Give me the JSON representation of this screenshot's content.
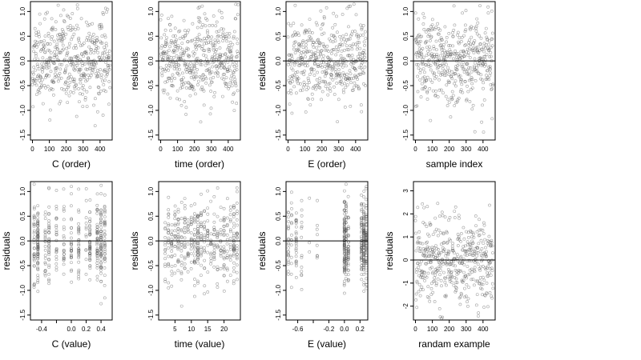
{
  "chart_data": [
    {
      "type": "scatter",
      "xlabel": "C (order)",
      "ylabel": "residuals",
      "xlim": [
        -12,
        472
      ],
      "ylim": [
        -1.6,
        1.2
      ],
      "xticks": [
        0,
        100,
        200,
        300,
        400
      ],
      "xtick_labels": [
        "0",
        "100",
        "200",
        "300",
        "400"
      ],
      "yticks": [
        -1.5,
        -1.0,
        -0.5,
        0.0,
        0.5,
        1.0
      ],
      "ytick_labels": [
        "-1.5",
        "-1.0",
        "-0.5",
        "0.0",
        "0.5",
        "1.0"
      ],
      "hline": 0,
      "x_kind": "index",
      "n": 460,
      "seed": 11
    },
    {
      "type": "scatter",
      "xlabel": "time (order)",
      "ylabel": "residuals",
      "xlim": [
        -12,
        472
      ],
      "ylim": [
        -1.6,
        1.2
      ],
      "xticks": [
        0,
        100,
        200,
        300,
        400
      ],
      "xtick_labels": [
        "0",
        "100",
        "200",
        "300",
        "400"
      ],
      "yticks": [
        -1.5,
        -1.0,
        -0.5,
        0.0,
        0.5,
        1.0
      ],
      "ytick_labels": [
        "-1.5",
        "-1.0",
        "-0.5",
        "0.0",
        "0.5",
        "1.0"
      ],
      "hline": 0,
      "x_kind": "index",
      "n": 460,
      "seed": 23
    },
    {
      "type": "scatter",
      "xlabel": "E (order)",
      "ylabel": "residuals",
      "xlim": [
        -12,
        472
      ],
      "ylim": [
        -1.6,
        1.2
      ],
      "xticks": [
        0,
        100,
        200,
        300,
        400
      ],
      "xtick_labels": [
        "0",
        "100",
        "200",
        "300",
        "400"
      ],
      "yticks": [
        -1.5,
        -1.0,
        -0.5,
        0.0,
        0.5,
        1.0
      ],
      "ytick_labels": [
        "-1.5",
        "-1.0",
        "-0.5",
        "0.0",
        "0.5",
        "1.0"
      ],
      "hline": 0,
      "x_kind": "index",
      "n": 460,
      "seed": 37
    },
    {
      "type": "scatter",
      "xlabel": "sample index",
      "ylabel": "residuals",
      "xlim": [
        -12,
        472
      ],
      "ylim": [
        -1.6,
        1.2
      ],
      "xticks": [
        0,
        100,
        200,
        300,
        400
      ],
      "xtick_labels": [
        "0",
        "100",
        "200",
        "300",
        "400"
      ],
      "yticks": [
        -1.5,
        -1.0,
        -0.5,
        0.0,
        0.5,
        1.0
      ],
      "ytick_labels": [
        "-1.5",
        "-1.0",
        "-0.5",
        "0.0",
        "0.5",
        "1.0"
      ],
      "hline": 0,
      "x_kind": "index",
      "n": 460,
      "seed": 53
    },
    {
      "type": "scatter",
      "xlabel": "C (value)",
      "ylabel": "residuals",
      "xlim": [
        -0.55,
        0.55
      ],
      "ylim": [
        -1.6,
        1.2
      ],
      "xticks": [
        -0.4,
        -0.2,
        0.0,
        0.2,
        0.4
      ],
      "xtick_labels": [
        "-0.4",
        "",
        "0.0",
        "0.2",
        "0.4"
      ],
      "yticks": [
        -1.5,
        -1.0,
        -0.5,
        0.0,
        0.5,
        1.0
      ],
      "ytick_labels": [
        "-1.5",
        "-1.0",
        "-0.5",
        "0.0",
        "0.5",
        "1.0"
      ],
      "hline": 0,
      "x_kind": "levels",
      "x_levels": [
        -0.5,
        -0.45,
        -0.35,
        -0.3,
        -0.2,
        -0.1,
        0.0,
        0.1,
        0.2,
        0.25,
        0.35,
        0.4,
        0.45
      ],
      "x_weights": [
        6,
        10,
        3,
        4,
        3,
        3,
        3,
        4,
        3,
        5,
        6,
        9,
        6
      ],
      "n": 460,
      "seed": 71
    },
    {
      "type": "scatter",
      "xlabel": "time (value)",
      "ylabel": "residuals",
      "xlim": [
        0,
        25
      ],
      "ylim": [
        -1.6,
        1.2
      ],
      "xticks": [
        5,
        10,
        15,
        20
      ],
      "xtick_labels": [
        "5",
        "10",
        "15",
        "20"
      ],
      "yticks": [
        -1.5,
        -1.0,
        -0.5,
        0.0,
        0.5,
        1.0
      ],
      "ytick_labels": [
        "-1.5",
        "-1.0",
        "-0.5",
        "0.0",
        "0.5",
        "1.0"
      ],
      "hline": 0,
      "x_kind": "levels",
      "x_levels": [
        2,
        3,
        4,
        5,
        6,
        7,
        8,
        9,
        10,
        11,
        12,
        13,
        14,
        15,
        16,
        17,
        18,
        19,
        20,
        21,
        22,
        23,
        24
      ],
      "x_weights": [
        3,
        4,
        3,
        4,
        4,
        3,
        4,
        3,
        4,
        5,
        9,
        4,
        3,
        4,
        3,
        5,
        3,
        3,
        4,
        3,
        3,
        5,
        5
      ],
      "n": 460,
      "seed": 89
    },
    {
      "type": "scatter",
      "xlabel": "E (value)",
      "ylabel": "residuals",
      "xlim": [
        -0.75,
        0.3
      ],
      "ylim": [
        -1.6,
        1.2
      ],
      "xticks": [
        -0.6,
        -0.4,
        -0.2,
        0.0,
        0.2
      ],
      "xtick_labels": [
        "-0.6",
        "",
        "-0.2",
        "0.0",
        "0.2"
      ],
      "yticks": [
        -1.5,
        -1.0,
        -0.5,
        0.0,
        0.5,
        1.0
      ],
      "ytick_labels": [
        "-1.5",
        "-1.0",
        "-0.5",
        "0.0",
        "0.5",
        "1.0"
      ],
      "hline": 0,
      "x_kind": "levels",
      "x_levels": [
        -0.72,
        -0.68,
        -0.62,
        -0.55,
        -0.45,
        -0.35,
        0.0,
        0.02,
        0.05,
        0.22,
        0.25,
        0.28
      ],
      "x_weights": [
        4,
        3,
        3,
        2,
        1,
        1,
        12,
        10,
        6,
        10,
        14,
        10
      ],
      "n": 460,
      "seed": 97
    },
    {
      "type": "scatter",
      "xlabel": "randam example",
      "ylabel": "residuals",
      "xlim": [
        -12,
        472
      ],
      "ylim": [
        -2.6,
        3.4
      ],
      "xticks": [
        0,
        100,
        200,
        300,
        400
      ],
      "xtick_labels": [
        "0",
        "100",
        "200",
        "300",
        "400"
      ],
      "yticks": [
        -2,
        -1,
        0,
        1,
        2,
        3
      ],
      "ytick_labels": [
        "-2",
        "-1",
        "0",
        "1",
        "2",
        "3"
      ],
      "hline": 0,
      "x_kind": "index",
      "n": 460,
      "seed": 131
    }
  ]
}
